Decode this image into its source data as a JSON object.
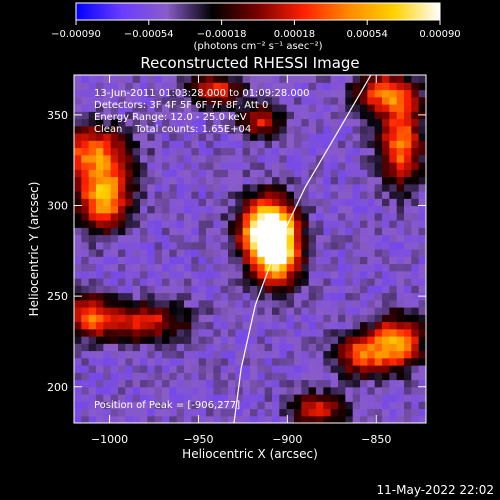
{
  "chart_data": {
    "type": "heatmap",
    "title": "Reconstructed RHESSI Image",
    "xlabel": "Heliocentric X (arcsec)",
    "ylabel": "Heliocentric Y (arcsec)",
    "xlim": [
      -1020,
      -822
    ],
    "ylim": [
      180,
      372
    ],
    "xticks": [
      {
        "value": -1000,
        "label": "−1000"
      },
      {
        "value": -950,
        "label": "−950"
      },
      {
        "value": -900,
        "label": "−900"
      },
      {
        "value": -850,
        "label": "−850"
      }
    ],
    "yticks": [
      {
        "value": 200,
        "label": "200"
      },
      {
        "value": 250,
        "label": "250"
      },
      {
        "value": 300,
        "label": "300"
      },
      {
        "value": 350,
        "label": "350"
      }
    ],
    "colorbar": {
      "range": [
        -0.0009,
        0.0009
      ],
      "ticks": [
        {
          "value": -0.0009,
          "label": "−0.00090"
        },
        {
          "value": -0.00054,
          "label": "−0.00054"
        },
        {
          "value": -0.00018,
          "label": "−0.00018"
        },
        {
          "value": 0.00018,
          "label": "0.00018"
        },
        {
          "value": 0.00054,
          "label": "0.00054"
        },
        {
          "value": 0.0009,
          "label": "0.00090"
        }
      ],
      "unit_label": "(photons cm⁻² s⁻¹ asec⁻²)",
      "colors": [
        "#0000ff",
        "#6a3cff",
        "#8a5cc8",
        "#000000",
        "#7a0000",
        "#ff2000",
        "#ff8a00",
        "#ffd200",
        "#ffffff"
      ]
    },
    "annotations": [
      "13-Jun-2011 01:03:28.000 to 01:09:28.000",
      "Detectors: 3F 4F 5F 6F 7F 8F, Att 0",
      "Energy Range: 12.0 - 25.0 keV",
      "Clean    Total counts: 1.65E+04"
    ],
    "peak_text": "Position of Peak = [-906,277]",
    "peak": {
      "x": -906,
      "y": 277,
      "value": 0.0009
    },
    "sources": [
      {
        "x": -906,
        "y": 277,
        "value": 0.0009,
        "sx": 9,
        "sy": 14
      },
      {
        "x": -913,
        "y": 287,
        "value": 0.00065,
        "sx": 10,
        "sy": 12
      },
      {
        "x": -1003,
        "y": 305,
        "value": 0.0006,
        "sx": 10,
        "sy": 12
      },
      {
        "x": -1010,
        "y": 330,
        "value": 0.00035,
        "sx": 14,
        "sy": 10
      },
      {
        "x": -983,
        "y": 236,
        "value": 0.00025,
        "sx": 18,
        "sy": 7
      },
      {
        "x": -1012,
        "y": 240,
        "value": 0.0002,
        "sx": 8,
        "sy": 8
      },
      {
        "x": -838,
        "y": 225,
        "value": 0.00045,
        "sx": 10,
        "sy": 10
      },
      {
        "x": -858,
        "y": 218,
        "value": 0.0003,
        "sx": 10,
        "sy": 8
      },
      {
        "x": -836,
        "y": 335,
        "value": 0.00045,
        "sx": 8,
        "sy": 16
      },
      {
        "x": -845,
        "y": 362,
        "value": 0.0003,
        "sx": 12,
        "sy": 8
      },
      {
        "x": -883,
        "y": 188,
        "value": 0.00025,
        "sx": 10,
        "sy": 6
      },
      {
        "x": -940,
        "y": 364,
        "value": 0.0002,
        "sx": 10,
        "sy": 6
      },
      {
        "x": -915,
        "y": 347,
        "value": 0.00018,
        "sx": 8,
        "sy": 6
      }
    ],
    "background_value": -0.00048,
    "limb": [
      [
        -930,
        180
      ],
      [
        -926,
        210
      ],
      [
        -918,
        245
      ],
      [
        -906,
        277
      ],
      [
        -890,
        310
      ],
      [
        -872,
        340
      ],
      [
        -853,
        372
      ]
    ]
  },
  "footer_datetime": "11-May-2022 22:02"
}
